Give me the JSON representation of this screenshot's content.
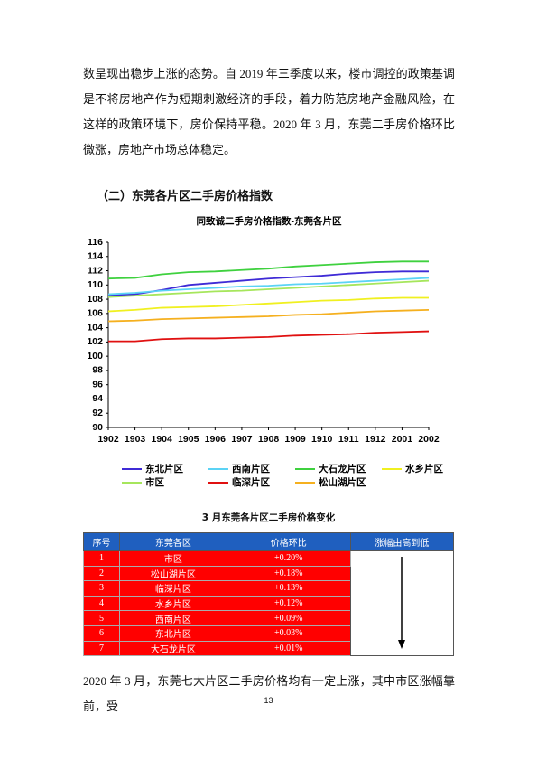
{
  "paragraph_1": "数呈现出稳步上涨的态势。自 2019 年三季度以来，楼市调控的政策基调是不将房地产作为短期刺激经济的手段，着力防范房地产金融风险，在这样的政策环境下，房价保持平稳。2020 年 3 月，东莞二手房价格环比微涨，房地产市场总体稳定。",
  "section_heading": "（二）东莞各片区二手房价格指数",
  "chart_data": {
    "type": "line",
    "title": "同致诚二手房价格指数-东莞各片区",
    "categories": [
      "1902",
      "1903",
      "1904",
      "1905",
      "1906",
      "1907",
      "1908",
      "1909",
      "1910",
      "1911",
      "1912",
      "2001",
      "2002"
    ],
    "series": [
      {
        "name": "东北片区",
        "color": "#3f2bd6",
        "values": [
          108.5,
          108.7,
          109.3,
          110.0,
          110.3,
          110.6,
          110.9,
          111.1,
          111.3,
          111.6,
          111.8,
          111.9,
          111.9
        ]
      },
      {
        "name": "西南片区",
        "color": "#5bd3f5",
        "values": [
          108.7,
          108.9,
          109.2,
          109.4,
          109.6,
          109.8,
          109.9,
          110.1,
          110.2,
          110.4,
          110.6,
          110.8,
          111.0
        ]
      },
      {
        "name": "大石龙片区",
        "color": "#3fd13f",
        "values": [
          110.9,
          111.0,
          111.5,
          111.8,
          111.9,
          112.1,
          112.3,
          112.6,
          112.8,
          113.0,
          113.2,
          113.3,
          113.3
        ]
      },
      {
        "name": "水乡片区",
        "color": "#f0f020",
        "values": [
          106.3,
          106.5,
          106.8,
          106.9,
          107.0,
          107.2,
          107.4,
          107.6,
          107.8,
          107.9,
          108.1,
          108.2,
          108.2
        ]
      },
      {
        "name": "市区",
        "color": "#a6e65c",
        "values": [
          108.3,
          108.5,
          108.7,
          108.9,
          109.1,
          109.2,
          109.4,
          109.6,
          109.8,
          110.0,
          110.2,
          110.4,
          110.6
        ]
      },
      {
        "name": "临深片区",
        "color": "#e01010",
        "values": [
          102.1,
          102.1,
          102.4,
          102.5,
          102.5,
          102.6,
          102.7,
          102.9,
          103.0,
          103.1,
          103.3,
          103.4,
          103.5
        ]
      },
      {
        "name": "松山湖片区",
        "color": "#f5b01f",
        "values": [
          104.9,
          105.0,
          105.2,
          105.3,
          105.4,
          105.5,
          105.6,
          105.8,
          105.9,
          106.1,
          106.3,
          106.4,
          106.5
        ]
      }
    ],
    "ylim": [
      90,
      116
    ],
    "yticks": [
      90,
      92,
      94,
      96,
      98,
      100,
      102,
      104,
      106,
      108,
      110,
      112,
      114,
      116
    ],
    "legend": "bottom"
  },
  "table_title": "3 月东莞各片区二手房价格变化",
  "table": {
    "header": [
      "序号",
      "东莞各区",
      "价格环比",
      "涨幅由高到低"
    ],
    "rows": [
      [
        "1",
        "市区",
        "+0.20%"
      ],
      [
        "2",
        "松山湖片区",
        "+0.18%"
      ],
      [
        "3",
        "临深片区",
        "+0.13%"
      ],
      [
        "4",
        "水乡片区",
        "+0.12%"
      ],
      [
        "5",
        "西南片区",
        "+0.09%"
      ],
      [
        "6",
        "东北片区",
        "+0.03%"
      ],
      [
        "7",
        "大石龙片区",
        "+0.01%"
      ]
    ]
  },
  "paragraph_2": "2020 年 3 月，东莞七大片区二手房价格均有一定上涨，其中市区涨幅靠前，受",
  "page_number": "13"
}
